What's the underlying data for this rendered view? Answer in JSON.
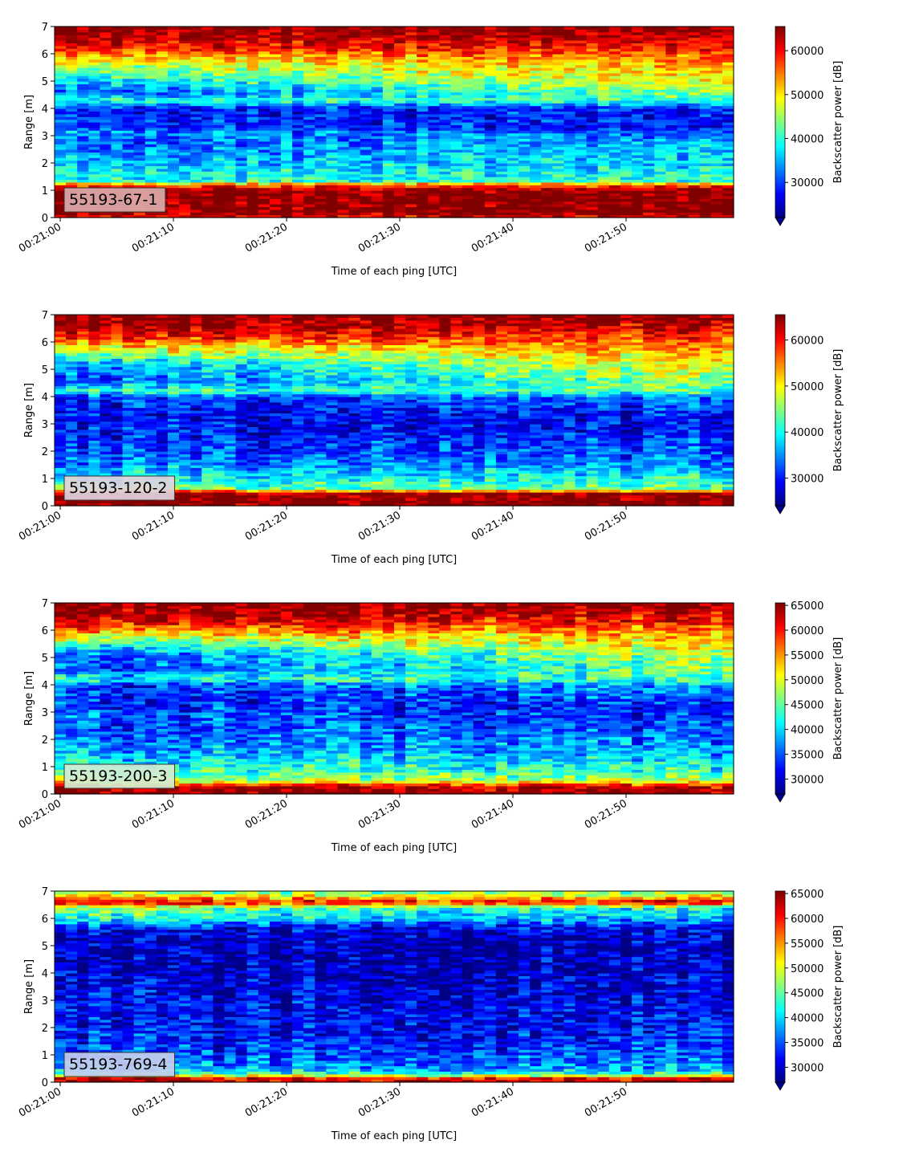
{
  "chart_data": [
    {
      "type": "heatmap",
      "panel_label": "55193-67-1",
      "label_bg": "#dcaaaa",
      "xlabel": "Time of each ping [UTC]",
      "ylabel": "Range [m]",
      "ylim": [
        0,
        7
      ],
      "yticks": [
        0,
        1,
        2,
        3,
        4,
        5,
        6,
        7
      ],
      "xlim": [
        "00:20:59.5",
        "00:21:59.5"
      ],
      "xtick_values": [
        "00:21:00",
        "00:21:10",
        "00:21:20",
        "00:21:30",
        "00:21:40",
        "00:21:50"
      ],
      "colorbar_label": "Backscatter power [dB]",
      "colorbar_range": [
        22000,
        65500
      ],
      "colorbar_ticks": [
        30000,
        40000,
        50000,
        60000
      ],
      "colorbar_extend": "min",
      "colormap": "jet",
      "profile_range_m": [
        0,
        0.2,
        0.25,
        1.0,
        1.2,
        1.35,
        2.0,
        2.8,
        3.1,
        3.3,
        4.0,
        4.3,
        4.6,
        5.2,
        5.9,
        6.2,
        6.7,
        7.0
      ],
      "profile_power_start": [
        60000,
        65500,
        65500,
        65500,
        56000,
        40000,
        36000,
        31000,
        35000,
        31000,
        28000,
        40000,
        30000,
        40000,
        52000,
        60000,
        65000,
        65500
      ],
      "profile_power_end": [
        60000,
        65500,
        65500,
        65500,
        56000,
        40000,
        36000,
        35000,
        30000,
        27000,
        28000,
        40000,
        44000,
        50000,
        54000,
        58000,
        62000,
        65500
      ]
    },
    {
      "type": "heatmap",
      "panel_label": "55193-120-2",
      "label_bg": "#e0d2de",
      "xlabel": "Time of each ping [UTC]",
      "ylabel": "Range [m]",
      "ylim": [
        0,
        7
      ],
      "yticks": [
        0,
        1,
        2,
        3,
        4,
        5,
        6,
        7
      ],
      "xlim": [
        "00:20:59.5",
        "00:21:59.5"
      ],
      "xtick_values": [
        "00:21:00",
        "00:21:10",
        "00:21:20",
        "00:21:30",
        "00:21:40",
        "00:21:50"
      ],
      "colorbar_label": "Backscatter power [dB]",
      "colorbar_range": [
        24000,
        65500
      ],
      "colorbar_ticks": [
        30000,
        40000,
        50000,
        60000
      ],
      "colorbar_extend": "min",
      "colormap": "jet",
      "profile_range_m": [
        0,
        0.1,
        0.5,
        0.6,
        1.0,
        1.6,
        2.5,
        2.9,
        3.2,
        4.0,
        4.2,
        4.6,
        5.2,
        5.8,
        6.2,
        6.6,
        7.0
      ],
      "profile_power_start": [
        65500,
        65500,
        65500,
        45000,
        40000,
        34000,
        30000,
        30000,
        29000,
        31000,
        42000,
        32000,
        36000,
        50000,
        60000,
        65000,
        65500
      ],
      "profile_power_end": [
        65500,
        65500,
        65500,
        44000,
        40000,
        34000,
        31000,
        29000,
        29000,
        34000,
        42000,
        46000,
        50000,
        54000,
        58000,
        62000,
        65500
      ]
    },
    {
      "type": "heatmap",
      "panel_label": "55193-200-3",
      "label_bg": "#d2ecd2",
      "xlabel": "Time of each ping [UTC]",
      "ylabel": "Range [m]",
      "ylim": [
        0,
        7
      ],
      "yticks": [
        0,
        1,
        2,
        3,
        4,
        5,
        6,
        7
      ],
      "xlim": [
        "00:20:59.5",
        "00:21:59.5"
      ],
      "xtick_values": [
        "00:21:00",
        "00:21:10",
        "00:21:20",
        "00:21:30",
        "00:21:40",
        "00:21:50"
      ],
      "colorbar_label": "Backscatter power [dB]",
      "colorbar_range": [
        27000,
        65500
      ],
      "colorbar_ticks": [
        30000,
        35000,
        40000,
        45000,
        50000,
        55000,
        60000,
        65000
      ],
      "colorbar_extend": "min",
      "colormap": "jet",
      "profile_range_m": [
        0,
        0.1,
        0.3,
        0.5,
        1.0,
        1.6,
        2.5,
        2.9,
        3.2,
        4.0,
        4.2,
        4.6,
        5.2,
        5.8,
        6.2,
        6.6,
        7.0
      ],
      "profile_power_start": [
        65500,
        65500,
        62000,
        48000,
        42000,
        38000,
        34000,
        36000,
        33000,
        33000,
        42000,
        33000,
        36000,
        50000,
        60000,
        65000,
        65500
      ],
      "profile_power_end": [
        65500,
        65500,
        62000,
        48000,
        42000,
        38000,
        35000,
        33000,
        33000,
        38000,
        44000,
        46000,
        50000,
        54000,
        58000,
        62000,
        65500
      ]
    },
    {
      "type": "heatmap",
      "panel_label": "55193-769-4",
      "label_bg": "#c6cdee",
      "xlabel": "Time of each ping [UTC]",
      "ylabel": "Range [m]",
      "ylim": [
        0,
        7
      ],
      "yticks": [
        0,
        1,
        2,
        3,
        4,
        5,
        6,
        7
      ],
      "xlim": [
        "00:20:59.5",
        "00:21:59.5"
      ],
      "xtick_values": [
        "00:21:00",
        "00:21:10",
        "00:21:20",
        "00:21:30",
        "00:21:40",
        "00:21:50"
      ],
      "colorbar_label": "Backscatter power [dB]",
      "colorbar_range": [
        27000,
        65500
      ],
      "colorbar_ticks": [
        30000,
        35000,
        40000,
        45000,
        50000,
        55000,
        60000,
        65000
      ],
      "colorbar_extend": "min",
      "colormap": "jet",
      "profile_range_m": [
        0,
        0.1,
        0.2,
        0.3,
        0.5,
        1.0,
        2.0,
        3.0,
        4.0,
        5.0,
        5.6,
        6.0,
        6.4,
        6.6,
        6.8,
        7.0
      ],
      "profile_power_start": [
        60000,
        65500,
        55000,
        44000,
        38000,
        34000,
        32000,
        31000,
        30000,
        29000,
        30000,
        42000,
        46000,
        62000,
        52000,
        45000
      ],
      "profile_power_end": [
        60000,
        65500,
        55000,
        44000,
        38000,
        35000,
        32000,
        31000,
        30000,
        29000,
        31000,
        38000,
        42000,
        62000,
        52000,
        45000
      ]
    }
  ]
}
